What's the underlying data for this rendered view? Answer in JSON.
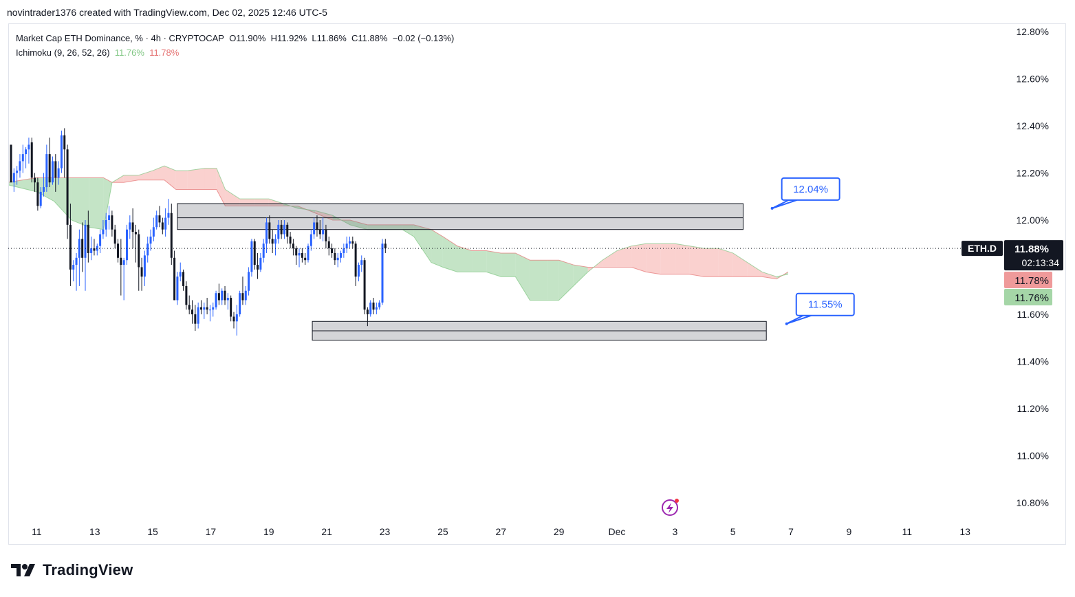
{
  "caption": "novintrader1376 created with TradingView.com, Dec 02, 2025 12:46 UTC-5",
  "legend": {
    "line1_prefix": "Market Cap ETH Dominance, % · 4h · CRYPTOCAP",
    "open": "O11.90%",
    "high": "H11.92%",
    "low": "L11.86%",
    "close": "C11.88%",
    "change": "−0.02 (−0.13%)",
    "indicator": "Ichimoku (9, 26, 52, 26)",
    "ind_val1": "11.76%",
    "ind_val2": "11.78%"
  },
  "logo_text": "TradingView",
  "colors": {
    "up": "#2962ff",
    "down": "#131722",
    "cloud_bull": "#a5d6a7",
    "cloud_bear": "#f7b8b5",
    "zone": "#d1d4dc",
    "callout": "#2962ff"
  },
  "chart_data": {
    "type": "candlestick",
    "symbol": "ETH.D",
    "title": "Market Cap ETH Dominance, % · 4h · CRYPTOCAP",
    "y_unit": "%",
    "ylim": [
      10.72,
      12.84
    ],
    "y_ticks": [
      12.8,
      12.6,
      12.4,
      12.2,
      12.0,
      11.8,
      11.6,
      11.4,
      11.2,
      11.0,
      10.8
    ],
    "y_tick_labels": [
      "12.80%",
      "12.60%",
      "12.40%",
      "12.20%",
      "12.00%",
      "",
      "11.60%",
      "11.40%",
      "11.20%",
      "11.00%",
      "10.80%"
    ],
    "x_ticks": [
      {
        "label": "11",
        "day": 11
      },
      {
        "label": "13",
        "day": 13
      },
      {
        "label": "15",
        "day": 15
      },
      {
        "label": "17",
        "day": 17
      },
      {
        "label": "19",
        "day": 19
      },
      {
        "label": "21",
        "day": 21
      },
      {
        "label": "23",
        "day": 23
      },
      {
        "label": "25",
        "day": 25
      },
      {
        "label": "27",
        "day": 27
      },
      {
        "label": "29",
        "day": 29
      },
      {
        "label": "Dec",
        "day": 31
      },
      {
        "label": "3",
        "day": 33
      },
      {
        "label": "5",
        "day": 35
      },
      {
        "label": "7",
        "day": 37
      },
      {
        "label": "9",
        "day": 39
      },
      {
        "label": "11",
        "day": 41
      },
      {
        "label": "13",
        "day": 43
      }
    ],
    "x_domain_days": [
      10.02,
      44.3
    ],
    "x_note": "day index counted from Nov 1 (Dec 1 = 31); chart is 4h candles",
    "candles": [
      [
        12.32,
        12.31,
        12.16,
        12.16
      ],
      [
        12.16,
        12.22,
        12.12,
        12.2
      ],
      [
        12.2,
        12.23,
        12.15,
        12.21
      ],
      [
        12.21,
        12.28,
        12.18,
        12.25
      ],
      [
        12.25,
        12.32,
        12.2,
        12.28
      ],
      [
        12.28,
        12.31,
        12.22,
        12.3
      ],
      [
        12.3,
        12.35,
        12.24,
        12.32
      ],
      [
        12.33,
        12.35,
        12.16,
        12.18
      ],
      [
        12.18,
        12.2,
        12.12,
        12.16
      ],
      [
        12.16,
        12.18,
        12.04,
        12.06
      ],
      [
        12.06,
        12.14,
        12.05,
        12.12
      ],
      [
        12.12,
        12.2,
        12.1,
        12.14
      ],
      [
        12.14,
        12.32,
        12.12,
        12.28
      ],
      [
        12.28,
        12.35,
        12.14,
        12.16
      ],
      [
        12.16,
        12.27,
        12.15,
        12.25
      ],
      [
        12.25,
        12.28,
        12.12,
        12.18
      ],
      [
        12.18,
        12.25,
        12.15,
        12.22
      ],
      [
        12.22,
        12.38,
        12.2,
        12.36
      ],
      [
        12.36,
        12.39,
        12.18,
        12.3
      ],
      [
        12.3,
        12.32,
        11.92,
        11.98
      ],
      [
        11.98,
        12.07,
        11.72,
        11.79
      ],
      [
        11.79,
        11.83,
        11.74,
        11.81
      ],
      [
        11.81,
        11.86,
        11.7,
        11.84
      ],
      [
        11.84,
        11.96,
        11.72,
        11.92
      ],
      [
        11.92,
        11.99,
        11.78,
        11.84
      ],
      [
        11.84,
        12.0,
        11.7,
        11.98
      ],
      [
        11.98,
        12.04,
        11.82,
        11.86
      ],
      [
        11.86,
        11.93,
        11.83,
        11.88
      ],
      [
        11.88,
        11.92,
        11.85,
        11.87
      ],
      [
        11.87,
        11.9,
        11.85,
        11.89
      ],
      [
        11.89,
        11.96,
        11.86,
        11.94
      ],
      [
        11.94,
        12.0,
        11.92,
        11.96
      ],
      [
        11.96,
        12.03,
        11.93,
        12.0
      ],
      [
        12.0,
        12.06,
        11.96,
        12.02
      ],
      [
        12.02,
        12.04,
        11.93,
        11.96
      ],
      [
        11.96,
        11.98,
        11.88,
        11.9
      ],
      [
        11.9,
        11.92,
        11.82,
        11.84
      ],
      [
        11.84,
        11.92,
        11.68,
        11.81
      ],
      [
        11.81,
        11.84,
        11.66,
        11.83
      ],
      [
        11.83,
        11.98,
        11.81,
        11.96
      ],
      [
        11.96,
        12.02,
        11.92,
        11.99
      ],
      [
        11.99,
        12.05,
        11.88,
        11.95
      ],
      [
        11.95,
        11.98,
        11.82,
        11.94
      ],
      [
        11.94,
        11.96,
        11.7,
        11.8
      ],
      [
        11.8,
        11.84,
        11.7,
        11.76
      ],
      [
        11.76,
        11.87,
        11.72,
        11.85
      ],
      [
        11.85,
        11.93,
        11.82,
        11.9
      ],
      [
        11.9,
        11.96,
        11.87,
        11.93
      ],
      [
        11.93,
        12.01,
        11.91,
        11.97
      ],
      [
        11.97,
        12.04,
        11.96,
        12.02
      ],
      [
        12.02,
        12.06,
        11.97,
        11.99
      ],
      [
        11.99,
        12.01,
        11.94,
        11.96
      ],
      [
        11.96,
        12.05,
        11.93,
        12.01
      ],
      [
        12.01,
        12.09,
        11.98,
        12.03
      ],
      [
        12.03,
        12.07,
        11.81,
        11.84
      ],
      [
        11.84,
        11.87,
        11.66,
        11.66
      ],
      [
        11.66,
        11.78,
        11.64,
        11.76
      ],
      [
        11.76,
        11.82,
        11.74,
        11.78
      ],
      [
        11.78,
        11.79,
        11.7,
        11.72
      ],
      [
        11.72,
        11.74,
        11.62,
        11.64
      ],
      [
        11.64,
        11.68,
        11.6,
        11.62
      ],
      [
        11.62,
        11.66,
        11.56,
        11.6
      ],
      [
        11.6,
        11.64,
        11.53,
        11.56
      ],
      [
        11.56,
        11.65,
        11.54,
        11.63
      ],
      [
        11.63,
        11.66,
        11.6,
        11.62
      ],
      [
        11.62,
        11.65,
        11.58,
        11.63
      ],
      [
        11.63,
        11.67,
        11.6,
        11.62
      ],
      [
        11.62,
        11.64,
        11.57,
        11.62
      ],
      [
        11.62,
        11.65,
        11.59,
        11.63
      ],
      [
        11.63,
        11.7,
        11.62,
        11.69
      ],
      [
        11.69,
        11.73,
        11.64,
        11.66
      ],
      [
        11.66,
        11.71,
        11.64,
        11.7
      ],
      [
        11.7,
        11.72,
        11.64,
        11.66
      ],
      [
        11.66,
        11.69,
        11.62,
        11.67
      ],
      [
        11.67,
        11.68,
        11.57,
        11.59
      ],
      [
        11.59,
        11.61,
        11.54,
        11.57
      ],
      [
        11.57,
        11.64,
        11.51,
        11.6
      ],
      [
        11.6,
        11.7,
        11.59,
        11.69
      ],
      [
        11.69,
        11.76,
        11.64,
        11.66
      ],
      [
        11.66,
        11.72,
        11.64,
        11.7
      ],
      [
        11.7,
        11.8,
        11.68,
        11.78
      ],
      [
        11.78,
        11.92,
        11.76,
        11.91
      ],
      [
        11.91,
        11.92,
        11.79,
        11.81
      ],
      [
        11.81,
        11.86,
        11.75,
        11.79
      ],
      [
        11.79,
        11.86,
        11.78,
        11.84
      ],
      [
        11.84,
        11.92,
        11.82,
        11.9
      ],
      [
        11.9,
        12.01,
        11.86,
        11.99
      ],
      [
        11.99,
        12.02,
        11.9,
        11.92
      ],
      [
        11.92,
        11.96,
        11.86,
        11.9
      ],
      [
        11.9,
        11.94,
        11.85,
        11.92
      ],
      [
        11.92,
        12.0,
        11.9,
        11.98
      ],
      [
        11.98,
        12.0,
        11.92,
        11.94
      ],
      [
        11.94,
        12.0,
        11.92,
        11.98
      ],
      [
        11.98,
        11.99,
        11.9,
        11.93
      ],
      [
        11.93,
        11.95,
        11.88,
        11.9
      ],
      [
        11.9,
        11.92,
        11.85,
        11.88
      ],
      [
        11.88,
        11.89,
        11.81,
        11.85
      ],
      [
        11.85,
        11.88,
        11.8,
        11.86
      ],
      [
        11.86,
        11.88,
        11.82,
        11.84
      ],
      [
        11.84,
        11.86,
        11.81,
        11.83
      ],
      [
        11.83,
        11.9,
        11.82,
        11.89
      ],
      [
        11.89,
        11.96,
        11.87,
        11.94
      ],
      [
        11.94,
        12.01,
        11.92,
        11.99
      ],
      [
        11.99,
        12.02,
        11.93,
        11.96
      ],
      [
        11.96,
        12.0,
        11.92,
        11.94
      ],
      [
        11.94,
        12.01,
        11.91,
        11.96
      ],
      [
        11.96,
        11.98,
        11.88,
        11.91
      ],
      [
        11.91,
        11.93,
        11.85,
        11.88
      ],
      [
        11.88,
        11.9,
        11.84,
        11.86
      ],
      [
        11.86,
        11.88,
        11.81,
        11.83
      ],
      [
        11.83,
        11.86,
        11.8,
        11.84
      ],
      [
        11.84,
        11.87,
        11.82,
        11.86
      ],
      [
        11.86,
        11.9,
        11.84,
        11.88
      ],
      [
        11.88,
        11.93,
        11.86,
        11.9
      ],
      [
        11.9,
        11.93,
        11.88,
        11.91
      ],
      [
        11.91,
        11.93,
        11.88,
        11.9
      ],
      [
        11.9,
        11.91,
        11.72,
        11.76
      ],
      [
        11.76,
        11.82,
        11.74,
        11.81
      ],
      [
        11.81,
        11.85,
        11.78,
        11.83
      ],
      [
        11.83,
        11.84,
        11.6,
        11.62
      ],
      [
        11.62,
        11.63,
        11.55,
        11.6
      ],
      [
        11.6,
        11.66,
        11.59,
        11.65
      ],
      [
        11.65,
        11.67,
        11.6,
        11.62
      ],
      [
        11.62,
        11.65,
        11.6,
        11.63
      ],
      [
        11.63,
        11.66,
        11.62,
        11.65
      ],
      [
        11.65,
        11.92,
        11.64,
        11.9
      ],
      [
        11.9,
        11.92,
        11.86,
        11.88
      ]
    ],
    "ichimoku": {
      "label": "Ichimoku (9, 26, 52, 26)",
      "params": [
        9,
        26,
        52,
        26
      ],
      "values": [
        "11.76%",
        "11.78%"
      ],
      "cloud_x_days": [
        10.0,
        11.0,
        11.6,
        12.2,
        12.8,
        13.3,
        13.6,
        14.0,
        14.5,
        15.0,
        15.4,
        15.8,
        16.2,
        16.8,
        17.2,
        17.5,
        18.0,
        18.5,
        19.0,
        19.5,
        20.0,
        20.6,
        21.2,
        21.8,
        22.4,
        23.0,
        23.6,
        24.0,
        24.6,
        25.0,
        25.5,
        26.0,
        26.5,
        27.0,
        27.5,
        28.0,
        28.6,
        29.0,
        29.5,
        30.0,
        30.5,
        31.0,
        31.5,
        32.0,
        32.5,
        33.0,
        33.5,
        34.0,
        34.5,
        35.0,
        35.5,
        36.0,
        36.5,
        36.9
      ],
      "span_a": [
        12.16,
        12.18,
        12.18,
        12.18,
        12.18,
        12.18,
        12.16,
        12.16,
        12.17,
        12.17,
        12.17,
        12.13,
        12.13,
        12.13,
        12.13,
        12.06,
        12.06,
        12.06,
        12.06,
        12.06,
        12.06,
        12.03,
        12.0,
        12.0,
        11.98,
        11.98,
        11.98,
        11.98,
        11.96,
        11.93,
        11.89,
        11.87,
        11.87,
        11.86,
        11.86,
        11.83,
        11.83,
        11.83,
        11.81,
        11.8,
        11.8,
        11.8,
        11.8,
        11.78,
        11.77,
        11.77,
        11.77,
        11.76,
        11.76,
        11.76,
        11.76,
        11.76,
        11.75,
        11.78
      ],
      "span_b": [
        12.15,
        12.12,
        12.08,
        12.0,
        11.97,
        11.96,
        12.16,
        12.19,
        12.19,
        12.21,
        12.23,
        12.21,
        12.21,
        12.22,
        12.22,
        12.13,
        12.09,
        12.09,
        12.09,
        12.07,
        12.05,
        12.04,
        12.02,
        11.98,
        11.96,
        11.96,
        11.96,
        11.93,
        11.82,
        11.8,
        11.78,
        11.78,
        11.78,
        11.76,
        11.76,
        11.66,
        11.66,
        11.66,
        11.72,
        11.78,
        11.83,
        11.87,
        11.89,
        11.9,
        11.9,
        11.9,
        11.89,
        11.88,
        11.88,
        11.86,
        11.82,
        11.78,
        11.76,
        11.77
      ]
    },
    "zones": [
      {
        "name": "resistance zone",
        "x_start_day": 15.85,
        "x_end_day": 35.35,
        "y_top": 12.07,
        "y_mid": 12.01,
        "y_bottom": 11.96
      },
      {
        "name": "support zone",
        "x_start_day": 20.5,
        "x_end_day": 36.15,
        "y_top": 11.57,
        "y_mid": 11.53,
        "y_bottom": 11.49
      }
    ],
    "callouts": [
      {
        "label": "12.04%",
        "value": 12.04,
        "anchor_day": 36.35,
        "anchor_value": 12.05
      },
      {
        "label": "11.55%",
        "value": 11.55,
        "anchor_day": 36.85,
        "anchor_value": 11.56
      }
    ],
    "current_price": {
      "symbol_label": "ETH.D",
      "value": 11.88,
      "value_label": "11.88%",
      "countdown": "02:13:34"
    },
    "price_badges": [
      {
        "value": 11.78,
        "label": "11.78%",
        "color": "#ef9a9a"
      },
      {
        "value": 11.76,
        "label": "11.76%",
        "color": "#a5d6a7"
      }
    ]
  }
}
